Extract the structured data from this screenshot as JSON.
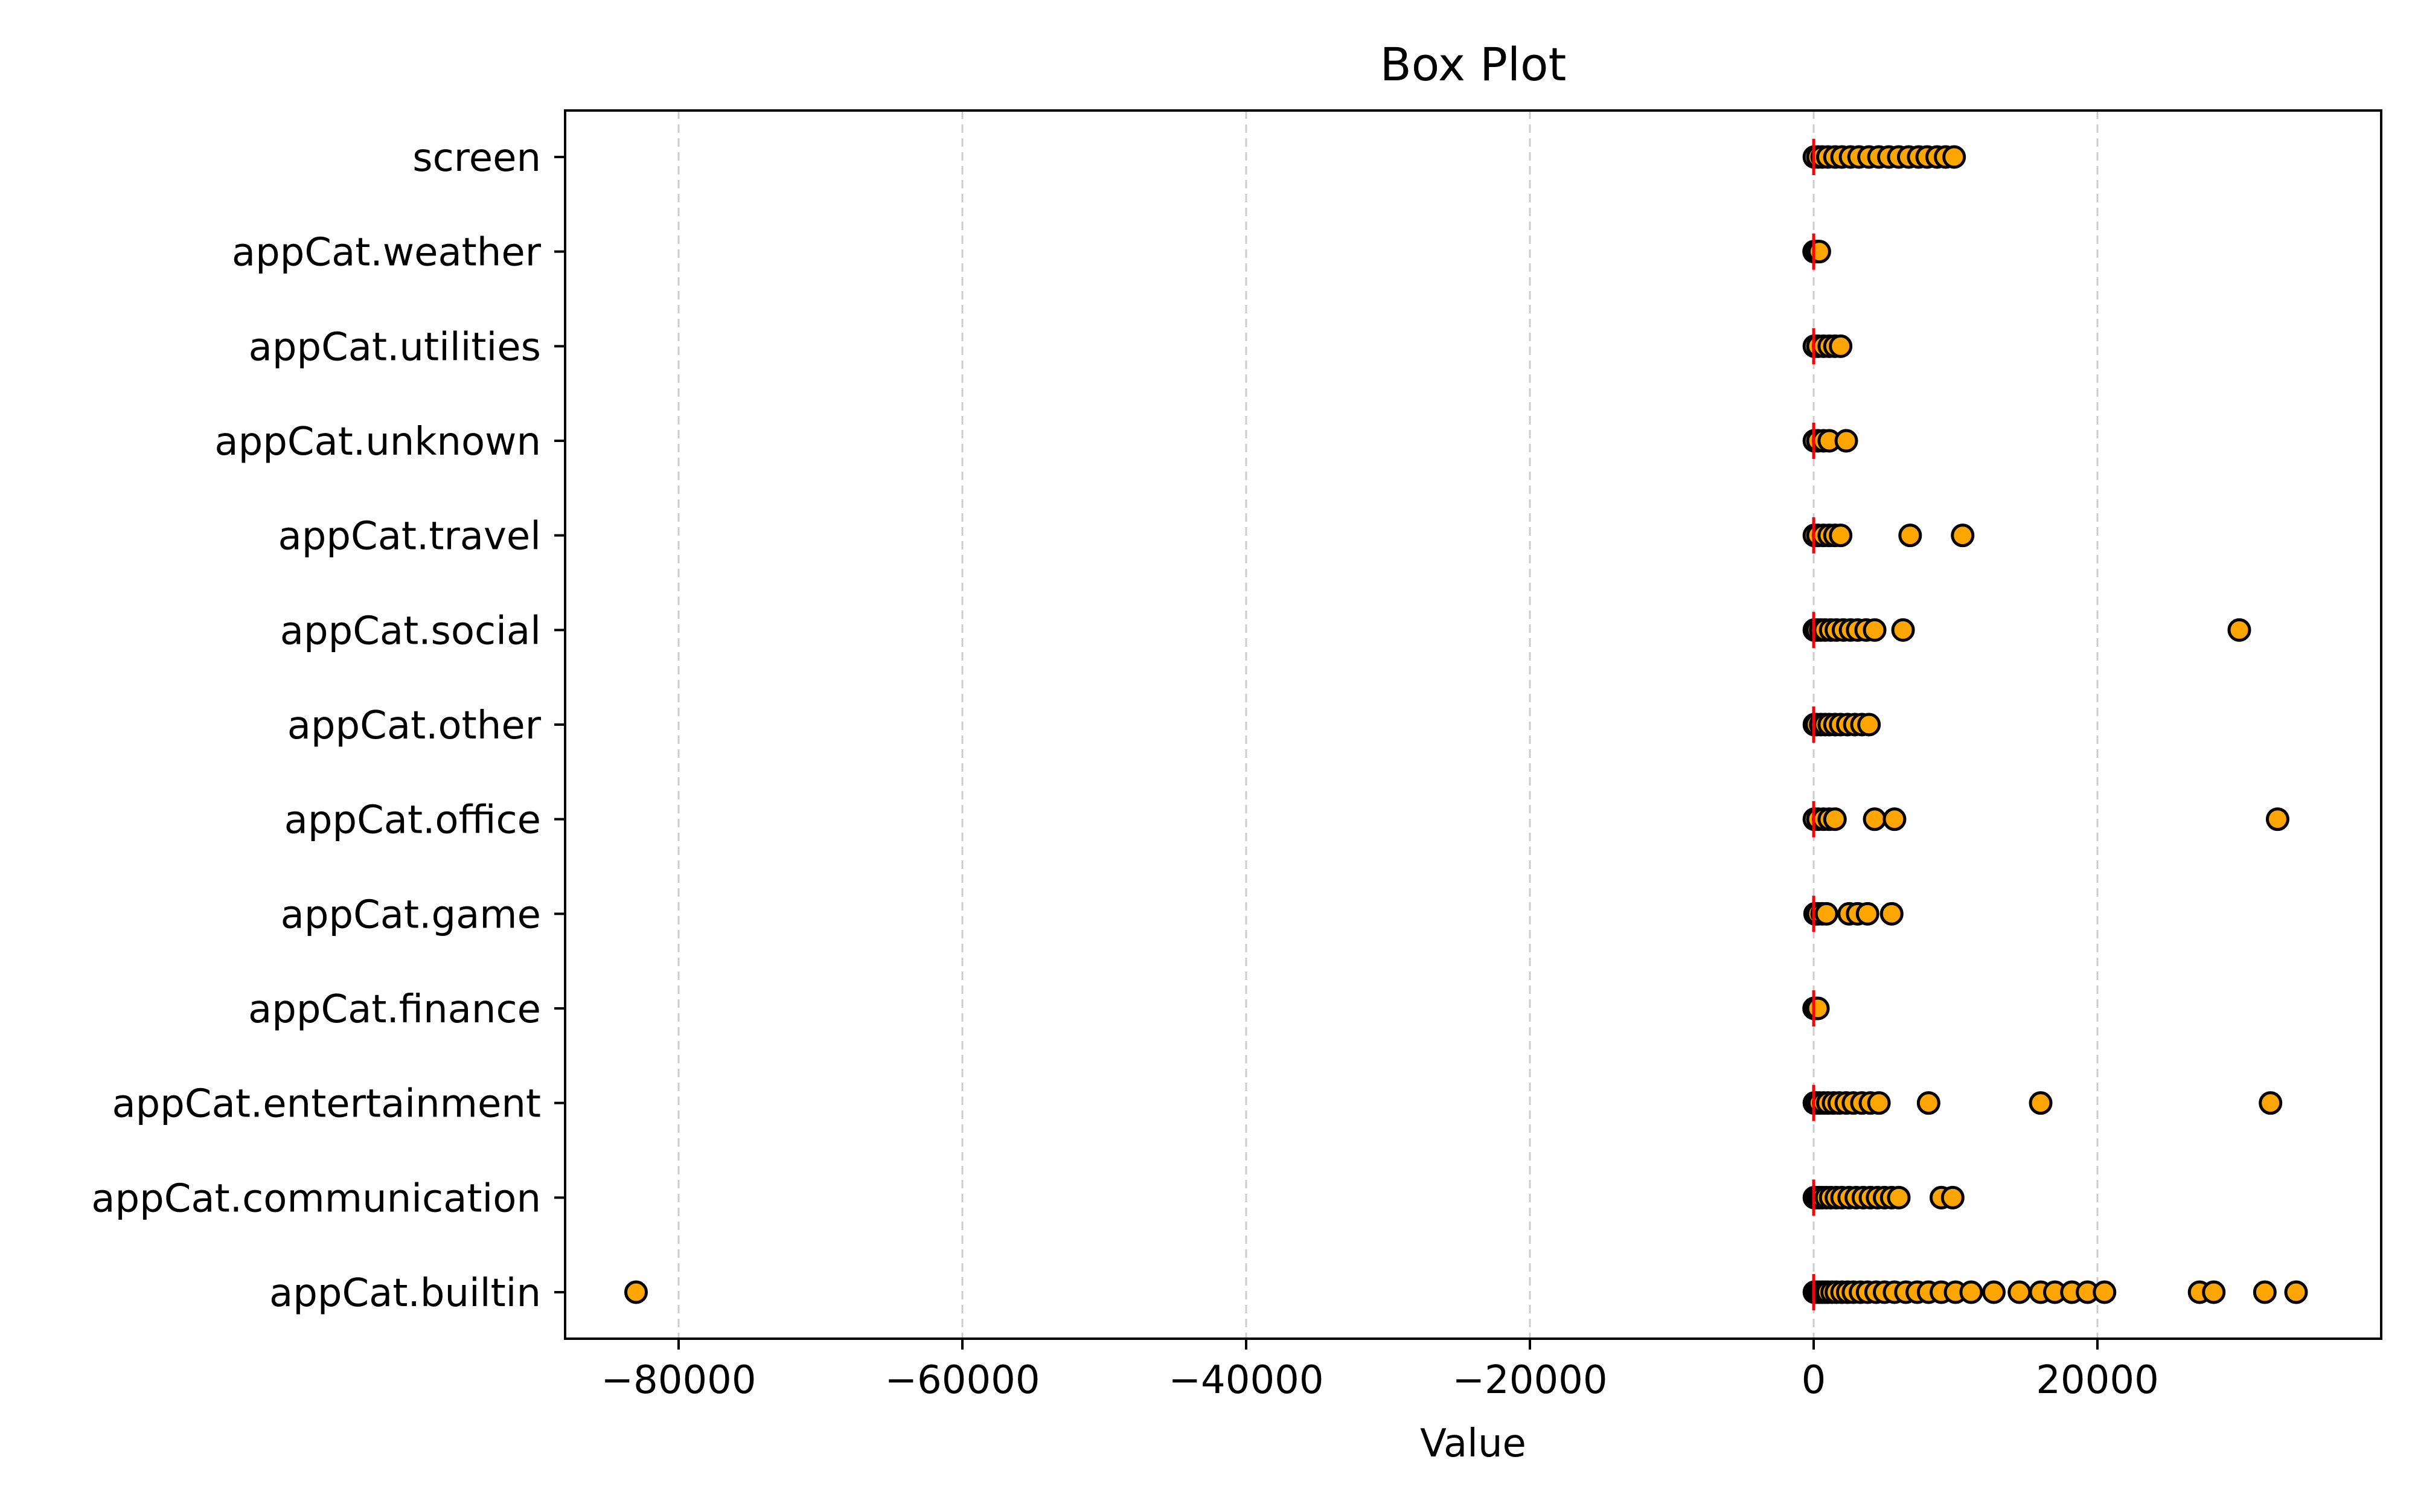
{
  "chart_data": {
    "type": "box",
    "title": "Box Plot",
    "xlabel": "Value",
    "ylabel": "",
    "xlim": [
      -88000,
      40000
    ],
    "xticks": [
      -80000,
      -60000,
      -40000,
      -20000,
      0,
      20000
    ],
    "xtick_labels": [
      "−80000",
      "−60000",
      "−40000",
      "−20000",
      "0",
      "20000"
    ],
    "grid": "x-dashed",
    "categories": [
      "appCat.builtin",
      "appCat.communication",
      "appCat.entertainment",
      "appCat.finance",
      "appCat.game",
      "appCat.office",
      "appCat.other",
      "appCat.social",
      "appCat.travel",
      "appCat.unknown",
      "appCat.utilities",
      "appCat.weather",
      "screen"
    ],
    "medians": [
      0,
      0,
      0,
      0,
      0,
      0,
      0,
      0,
      0,
      0,
      0,
      0,
      0
    ],
    "outliers": [
      [
        -83000,
        50,
        200,
        400,
        600,
        800,
        1000,
        1300,
        1600,
        2000,
        2400,
        2800,
        3300,
        3800,
        4400,
        5000,
        5700,
        6500,
        7300,
        8100,
        9000,
        10000,
        11100,
        12700,
        14500,
        16000,
        17000,
        18200,
        19300,
        20500,
        27200,
        28200,
        31800,
        34000
      ],
      [
        50,
        200,
        400,
        600,
        900,
        1200,
        1600,
        2000,
        2500,
        3000,
        3500,
        4000,
        4500,
        5000,
        5500,
        6000,
        9000,
        9800
      ],
      [
        50,
        200,
        400,
        700,
        1000,
        1400,
        1800,
        2300,
        2800,
        3400,
        4000,
        4600,
        8100,
        16000,
        32200
      ],
      [
        30,
        150,
        300
      ],
      [
        100,
        300,
        600,
        900,
        2500,
        3100,
        3800,
        5500
      ],
      [
        50,
        300,
        700,
        1100,
        1500,
        4300,
        5700,
        32700
      ],
      [
        50,
        200,
        500,
        800,
        1100,
        1500,
        1900,
        2400,
        2900,
        3400,
        3900
      ],
      [
        50,
        250,
        500,
        800,
        1200,
        1600,
        2100,
        2600,
        3100,
        3700,
        4300,
        6300,
        30000
      ],
      [
        50,
        300,
        700,
        1100,
        1500,
        1900,
        6800,
        10500
      ],
      [
        50,
        300,
        700,
        1100,
        2300
      ],
      [
        50,
        300,
        700,
        1100,
        1500,
        1900
      ],
      [
        30,
        150,
        300,
        400
      ],
      [
        50,
        300,
        600,
        1000,
        1500,
        2000,
        2600,
        3200,
        3900,
        4600,
        5300,
        6000,
        6700,
        7400,
        8000,
        8700,
        9300,
        9900
      ]
    ],
    "colors": {
      "outlier_fill": "#ffa500",
      "outlier_edge": "#000000",
      "median": "#ff0000",
      "grid": "#cccccc",
      "axes": "#000000"
    }
  }
}
